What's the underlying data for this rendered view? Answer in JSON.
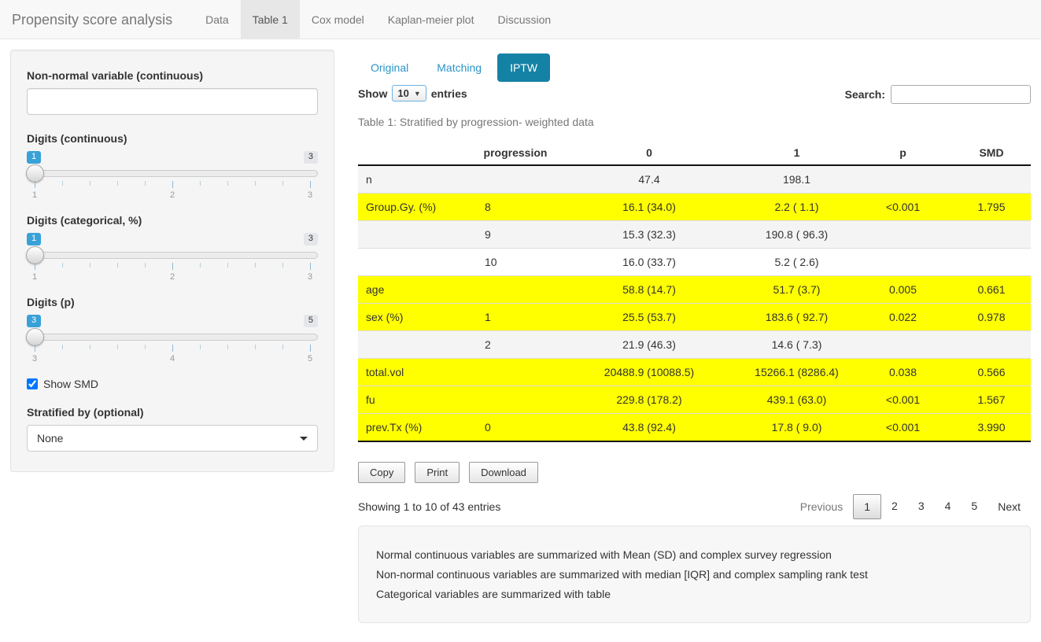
{
  "colors": {
    "accent_link": "#2a94c8",
    "pill_active_bg": "#1482a5",
    "highlight_row": "#ffff00",
    "slider_badge": "#39a1d8",
    "navbar_bg": "#f8f8f8"
  },
  "navbar": {
    "brand": "Propensity score analysis",
    "items": [
      {
        "label": "Data",
        "active": false
      },
      {
        "label": "Table 1",
        "active": true
      },
      {
        "label": "Cox model",
        "active": false
      },
      {
        "label": "Kaplan-meier plot",
        "active": false
      },
      {
        "label": "Discussion",
        "active": false
      }
    ]
  },
  "sidebar": {
    "nonnormal_label": "Non-normal variable (continuous)",
    "nonnormal_value": "",
    "sliders": [
      {
        "label": "Digits (continuous)",
        "value": "1",
        "max": "3",
        "ticks": [
          "1",
          "2",
          "3"
        ]
      },
      {
        "label": "Digits (categorical, %)",
        "value": "1",
        "max": "3",
        "ticks": [
          "1",
          "2",
          "3"
        ]
      },
      {
        "label": "Digits (p)",
        "value": "3",
        "max": "5",
        "ticks": [
          "3",
          "4",
          "5"
        ]
      }
    ],
    "smd_label": "Show SMD",
    "smd_checked": true,
    "stratified_label": "Stratified by (optional)",
    "stratified_value": "None"
  },
  "main": {
    "tabs": [
      {
        "label": "Original",
        "active": false
      },
      {
        "label": "Matching",
        "active": false
      },
      {
        "label": "IPTW",
        "active": true
      }
    ],
    "show_label": "Show",
    "page_length": "10",
    "entries_label": "entries",
    "search_label": "Search:",
    "search_value": "",
    "caption": "Table 1: Stratified by progression- weighted data",
    "table": {
      "headers": [
        "",
        "progression",
        "0",
        "1",
        "p",
        "SMD"
      ],
      "rows": [
        {
          "cells": [
            "n",
            "",
            "47.4",
            "198.1",
            "",
            ""
          ],
          "highlight": false
        },
        {
          "cells": [
            "Group.Gy. (%)",
            "8",
            "16.1 (34.0)",
            "2.2 ( 1.1)",
            "<0.001",
            "1.795"
          ],
          "highlight": true
        },
        {
          "cells": [
            "",
            "9",
            "15.3 (32.3)",
            "190.8 ( 96.3)",
            "",
            ""
          ],
          "highlight": false
        },
        {
          "cells": [
            "",
            "10",
            "16.0 (33.7)",
            "5.2 ( 2.6)",
            "",
            ""
          ],
          "highlight": false
        },
        {
          "cells": [
            "age",
            "",
            "58.8 (14.7)",
            "51.7 (3.7)",
            "0.005",
            "0.661"
          ],
          "highlight": true
        },
        {
          "cells": [
            "sex (%)",
            "1",
            "25.5 (53.7)",
            "183.6 ( 92.7)",
            "0.022",
            "0.978"
          ],
          "highlight": true
        },
        {
          "cells": [
            "",
            "2",
            "21.9 (46.3)",
            "14.6 ( 7.3)",
            "",
            ""
          ],
          "highlight": false
        },
        {
          "cells": [
            "total.vol",
            "",
            "20488.9 (10088.5)",
            "15266.1 (8286.4)",
            "0.038",
            "0.566"
          ],
          "highlight": true
        },
        {
          "cells": [
            "fu",
            "",
            "229.8 (178.2)",
            "439.1 (63.0)",
            "<0.001",
            "1.567"
          ],
          "highlight": true
        },
        {
          "cells": [
            "prev.Tx (%)",
            "0",
            "43.8 (92.4)",
            "17.8 ( 9.0)",
            "<0.001",
            "3.990"
          ],
          "highlight": true
        }
      ]
    },
    "buttons": [
      "Copy",
      "Print",
      "Download"
    ],
    "info": "Showing 1 to 10 of 43 entries",
    "pagination": {
      "previous": "Previous",
      "pages": [
        "1",
        "2",
        "3",
        "4",
        "5"
      ],
      "current": "1",
      "next": "Next"
    },
    "notes": [
      "Normal continuous variables are summarized with Mean (SD) and complex survey regression",
      "Non-normal continuous variables are summarized with median [IQR] and complex sampling rank test",
      "Categorical variables are summarized with table"
    ]
  }
}
